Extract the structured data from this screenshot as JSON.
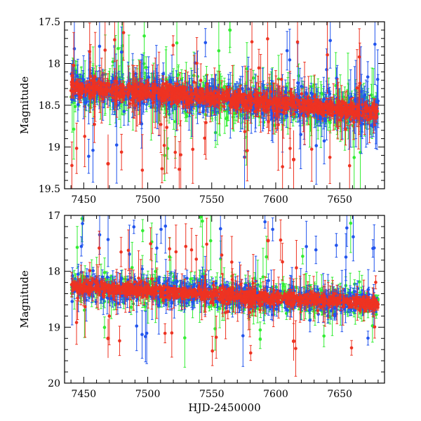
{
  "chart_data": [
    {
      "type": "scatter",
      "ylabel": "Magnitude",
      "xlabel": "",
      "xlim": [
        7435,
        7685
      ],
      "ylim": [
        19.5,
        17.5
      ],
      "y_inverted": true,
      "x_ticks": [
        7450,
        7500,
        7550,
        7600,
        7650
      ],
      "x_tick_labels": [
        "7450",
        "7500",
        "7550",
        "7600",
        "7650"
      ],
      "y_ticks": [
        17.5,
        18,
        18.5,
        19,
        19.5
      ],
      "y_tick_labels": [
        "17.5",
        "18",
        "18.5",
        "19",
        "19.5"
      ],
      "series": [
        {
          "color": "#33ee33",
          "style": "points-with-errorbars",
          "trend": {
            "x": [
              7440,
              7680
            ],
            "y": [
              18.27,
              18.58
            ]
          },
          "scatter_sigma": 0.1,
          "outlier_range": [
            17.5,
            19.3
          ]
        },
        {
          "color": "#2255ee",
          "style": "points-with-errorbars",
          "trend": {
            "x": [
              7440,
              7680
            ],
            "y": [
              18.27,
              18.58
            ]
          },
          "scatter_sigma": 0.08,
          "outlier_range": [
            17.7,
            19.2
          ]
        },
        {
          "color": "#ee3322",
          "style": "points-with-errorbars",
          "trend": {
            "x": [
              7440,
              7680
            ],
            "y": [
              18.27,
              18.58
            ]
          },
          "scatter_sigma": 0.05,
          "outlier_range": [
            17.6,
            19.3
          ]
        }
      ],
      "highlighted_points": [
        {
          "series": 2,
          "x": 7469,
          "y": 19.2
        },
        {
          "series": 2,
          "x": 7614,
          "y": 19.15
        }
      ]
    },
    {
      "type": "scatter",
      "ylabel": "Magnitude",
      "xlabel": "HJD-2450000",
      "xlim": [
        7435,
        7685
      ],
      "ylim": [
        20,
        17
      ],
      "y_inverted": true,
      "x_ticks": [
        7450,
        7500,
        7550,
        7600,
        7650
      ],
      "x_tick_labels": [
        "7450",
        "7500",
        "7550",
        "7600",
        "7650"
      ],
      "y_ticks": [
        17,
        18,
        19,
        20
      ],
      "y_tick_labels": [
        "17",
        "18",
        "19",
        "20"
      ],
      "series": [
        {
          "color": "#33ee33",
          "style": "points-with-errorbars",
          "trend": {
            "x": [
              7440,
              7680
            ],
            "y": [
              18.27,
              18.58
            ]
          },
          "scatter_sigma": 0.12,
          "outlier_range": [
            17.0,
            19.3
          ]
        },
        {
          "color": "#2255ee",
          "style": "points-with-errorbars",
          "trend": {
            "x": [
              7440,
              7680
            ],
            "y": [
              18.27,
              18.58
            ]
          },
          "scatter_sigma": 0.1,
          "outlier_range": [
            17.0,
            19.2
          ]
        },
        {
          "color": "#ee3322",
          "style": "points-with-errorbars",
          "trend": {
            "x": [
              7440,
              7680
            ],
            "y": [
              18.27,
              18.58
            ]
          },
          "scatter_sigma": 0.06,
          "outlier_range": [
            17.4,
            19.6
          ]
        }
      ],
      "highlighted_points": [
        {
          "series": 2,
          "x": 7469,
          "y": 19.2
        },
        {
          "series": 2,
          "x": 7594,
          "y": 17.45
        },
        {
          "series": 2,
          "x": 7614,
          "y": 19.25
        }
      ]
    }
  ]
}
